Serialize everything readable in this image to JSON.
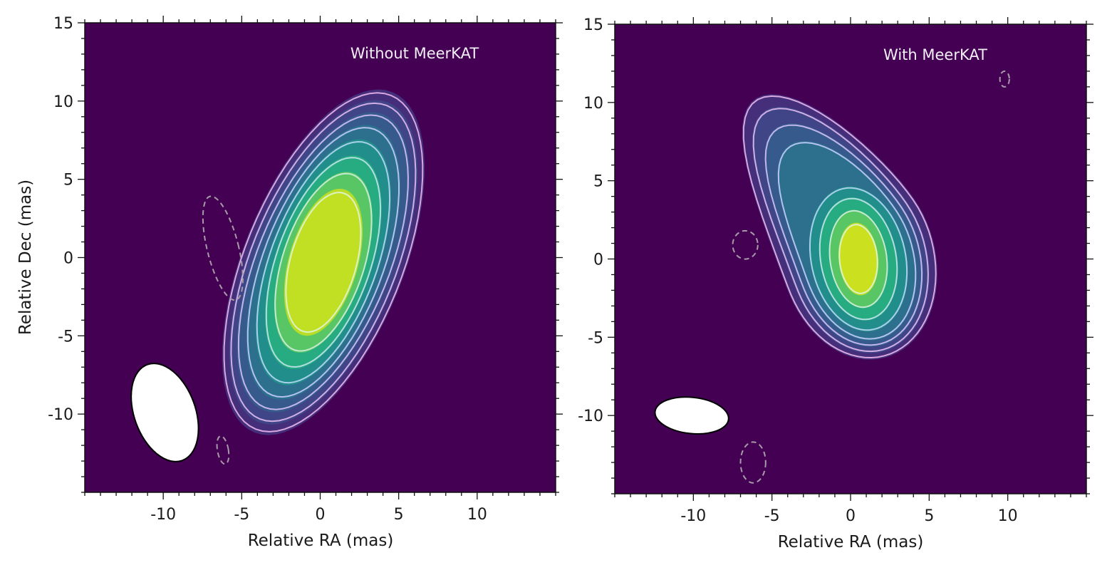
{
  "chart_data": [
    {
      "type": "heatmap",
      "title": "Without MeerKAT",
      "xlabel": "Relative RA (mas)",
      "ylabel": "Relative Dec (mas)",
      "xlim": [
        -15,
        15
      ],
      "ylim": [
        -15,
        15
      ],
      "xticks": [
        -10,
        -5,
        0,
        5,
        10
      ],
      "yticks": [
        -10,
        -5,
        0,
        5,
        10,
        15
      ],
      "xtick_labels": [
        "-10",
        "-5",
        "0",
        "5",
        "10"
      ],
      "ytick_labels": [
        "-10",
        "-5",
        "0",
        "5",
        "10",
        "15"
      ],
      "minor_tick_step": 1,
      "colormap": "viridis",
      "background_color": "#440154",
      "peak_position_mas": [
        0.2,
        -0.3
      ],
      "source_shape": {
        "description": "elongated emission, major axis tilted from north toward east",
        "center_mas": [
          0.2,
          -0.3
        ],
        "contours": [
          {
            "level": 1,
            "semi_major_mas": 11.5,
            "semi_minor_mas": 5.0,
            "angle_deg": 22
          },
          {
            "level": 2,
            "semi_major_mas": 10.8,
            "semi_minor_mas": 4.6,
            "angle_deg": 22
          },
          {
            "level": 3,
            "semi_major_mas": 10.0,
            "semi_minor_mas": 4.2,
            "angle_deg": 22
          },
          {
            "level": 4,
            "semi_major_mas": 9.1,
            "semi_minor_mas": 3.8,
            "angle_deg": 21
          },
          {
            "level": 5,
            "semi_major_mas": 8.1,
            "semi_minor_mas": 3.4,
            "angle_deg": 20
          },
          {
            "level": 6,
            "semi_major_mas": 7.0,
            "semi_minor_mas": 3.0,
            "angle_deg": 19
          },
          {
            "level": 7,
            "semi_major_mas": 5.9,
            "semi_minor_mas": 2.6,
            "angle_deg": 18
          },
          {
            "level": 8,
            "semi_major_mas": 4.6,
            "semi_minor_mas": 2.1,
            "angle_deg": 16
          }
        ]
      },
      "negative_contours": [
        {
          "center_mas": [
            -6.2,
            0.6
          ],
          "semi_major_mas": 3.4,
          "semi_minor_mas": 1.0,
          "angle_deg": 14
        },
        {
          "center_mas": [
            -6.2,
            -12.3
          ],
          "semi_major_mas": 0.9,
          "semi_minor_mas": 0.35,
          "angle_deg": 10
        }
      ],
      "beam": {
        "center_mas": [
          -9.9,
          -9.9
        ],
        "major_mas": 6.5,
        "minor_mas": 3.9,
        "pa_deg": 20
      }
    },
    {
      "type": "heatmap",
      "title": "With MeerKAT",
      "xlabel": "Relative RA (mas)",
      "ylabel": "",
      "xlim": [
        -15,
        15
      ],
      "ylim": [
        -15,
        15
      ],
      "xticks": [
        -10,
        -5,
        0,
        5,
        10
      ],
      "yticks": [
        -10,
        -5,
        0,
        5,
        10,
        15
      ],
      "xtick_labels": [
        "-10",
        "-5",
        "0",
        "5",
        "10"
      ],
      "ytick_labels": [
        "-10",
        "-5",
        "0",
        "5",
        "10",
        "15"
      ],
      "minor_tick_step": 1,
      "colormap": "viridis",
      "background_color": "#440154",
      "peak_position_mas": [
        0.5,
        0.0
      ],
      "source_shape": {
        "description": "compact core with extension to the north-east",
        "center_mas": [
          0.5,
          0.0
        ],
        "contours": [
          {
            "level": 1,
            "semi_major_mas": 6.4,
            "semi_minor_mas": 4.8,
            "angle_deg": -15,
            "ext_mas": 6.5
          },
          {
            "level": 2,
            "semi_major_mas": 6.0,
            "semi_minor_mas": 4.3,
            "angle_deg": -15,
            "ext_mas": 5.9
          },
          {
            "level": 3,
            "semi_major_mas": 5.6,
            "semi_minor_mas": 3.9,
            "angle_deg": -15,
            "ext_mas": 4.9
          },
          {
            "level": 4,
            "semi_major_mas": 5.2,
            "semi_minor_mas": 3.5,
            "angle_deg": -15,
            "ext_mas": 3.8
          },
          {
            "level": 5,
            "semi_major_mas": 4.6,
            "semi_minor_mas": 3.0,
            "angle_deg": -12,
            "ext_mas": 0.0
          },
          {
            "level": 6,
            "semi_major_mas": 3.9,
            "semi_minor_mas": 2.4,
            "angle_deg": -10,
            "ext_mas": 0.0
          },
          {
            "level": 7,
            "semi_major_mas": 3.1,
            "semi_minor_mas": 1.8,
            "angle_deg": -8,
            "ext_mas": 0.0
          },
          {
            "level": 8,
            "semi_major_mas": 2.2,
            "semi_minor_mas": 1.2,
            "angle_deg": -5,
            "ext_mas": 0.0
          }
        ]
      },
      "negative_contours": [
        {
          "center_mas": [
            -6.7,
            0.9
          ],
          "semi_major_mas": 0.9,
          "semi_minor_mas": 0.8,
          "angle_deg": 0
        },
        {
          "center_mas": [
            -6.2,
            -13.0
          ],
          "semi_major_mas": 1.3,
          "semi_minor_mas": 0.8,
          "angle_deg": 0
        },
        {
          "center_mas": [
            9.8,
            11.5
          ],
          "semi_major_mas": 0.5,
          "semi_minor_mas": 0.3,
          "angle_deg": 0
        }
      ],
      "beam": {
        "center_mas": [
          -10.1,
          -10.0
        ],
        "major_mas": 4.7,
        "minor_mas": 2.3,
        "pa_deg": 84
      }
    }
  ]
}
